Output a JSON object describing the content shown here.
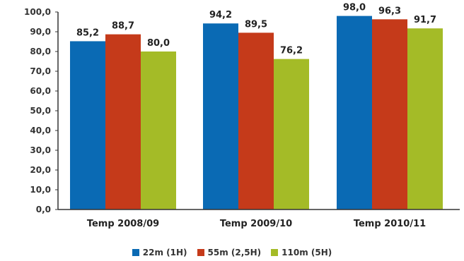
{
  "chart_data": {
    "type": "bar",
    "categories": [
      "Temp 2008/09",
      "Temp 2009/10",
      "Temp 2010/11"
    ],
    "series": [
      {
        "name": "22m (1H)",
        "color": "#0a6ab4",
        "values": [
          "85,2",
          "94,2",
          "98,0"
        ]
      },
      {
        "name": "55m (2,5H)",
        "color": "#c53a1a",
        "values": [
          "88,7",
          "89,5",
          "96,3"
        ]
      },
      {
        "name": "110m (5H)",
        "color": "#a4bb27",
        "values": [
          "80,0",
          "76,2",
          "91,7"
        ]
      }
    ],
    "y_ticks": [
      "0,0",
      "10,0",
      "20,0",
      "30,0",
      "40,0",
      "50,0",
      "60,0",
      "70,0",
      "80,0",
      "90,0",
      "100,0"
    ],
    "ylim": [
      0,
      100
    ],
    "grid": false,
    "legend_position": "bottom"
  }
}
